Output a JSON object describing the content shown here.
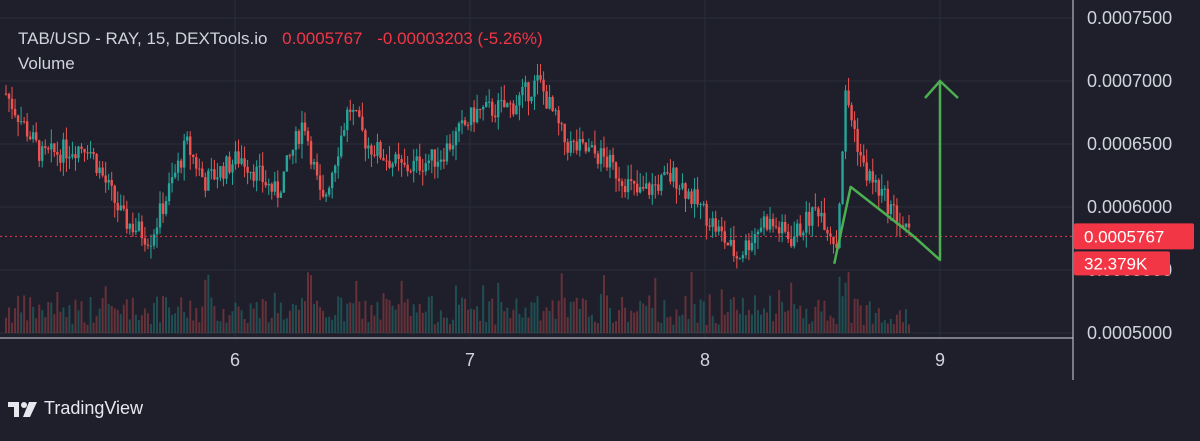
{
  "header": {
    "symbol_line": "TAB/USD - RAY, 15, DEXTools.io",
    "last_price": "0.0005767",
    "change": "-0.00003203 (-5.26%)",
    "volume_label": "Volume"
  },
  "brand": {
    "name": "TradingView"
  },
  "colors": {
    "background": "#1e1f2b",
    "up": "#26a69a",
    "down": "#ef5350",
    "last_price": "#f23645",
    "arrow": "#4caf50"
  },
  "chart_data": {
    "type": "candlestick",
    "x_ticks": [
      "6",
      "7",
      "8",
      "9"
    ],
    "y_ticks": [
      "0.0005000",
      "0.0005500",
      "0.0006000",
      "0.0006500",
      "0.0007000",
      "0.0007500"
    ],
    "ylim": [
      0.0005,
      0.00075
    ],
    "last_price_label": "0.0005767",
    "volume_label": "32.379K",
    "price_path_waypoints": [
      {
        "t": 0.0,
        "v": 0.00069
      },
      {
        "t": 0.04,
        "v": 0.00064
      },
      {
        "t": 0.09,
        "v": 0.00065
      },
      {
        "t": 0.13,
        "v": 0.00059
      },
      {
        "t": 0.16,
        "v": 0.000575
      },
      {
        "t": 0.2,
        "v": 0.00065
      },
      {
        "t": 0.22,
        "v": 0.00062
      },
      {
        "t": 0.26,
        "v": 0.00064
      },
      {
        "t": 0.3,
        "v": 0.00061
      },
      {
        "t": 0.33,
        "v": 0.00067
      },
      {
        "t": 0.35,
        "v": 0.0006
      },
      {
        "t": 0.38,
        "v": 0.00068
      },
      {
        "t": 0.4,
        "v": 0.00065
      },
      {
        "t": 0.44,
        "v": 0.00063
      },
      {
        "t": 0.48,
        "v": 0.00064
      },
      {
        "t": 0.52,
        "v": 0.000675
      },
      {
        "t": 0.56,
        "v": 0.00068
      },
      {
        "t": 0.59,
        "v": 0.0007
      },
      {
        "t": 0.62,
        "v": 0.00065
      },
      {
        "t": 0.66,
        "v": 0.00064
      },
      {
        "t": 0.7,
        "v": 0.00061
      },
      {
        "t": 0.74,
        "v": 0.000625
      },
      {
        "t": 0.78,
        "v": 0.00059
      },
      {
        "t": 0.81,
        "v": 0.00056
      },
      {
        "t": 0.84,
        "v": 0.00059
      },
      {
        "t": 0.87,
        "v": 0.000575
      },
      {
        "t": 0.9,
        "v": 0.0006
      },
      {
        "t": 0.92,
        "v": 0.00057
      },
      {
        "t": 0.93,
        "v": 0.00069
      },
      {
        "t": 0.95,
        "v": 0.00063
      },
      {
        "t": 0.97,
        "v": 0.00061
      },
      {
        "t": 1.0,
        "v": 0.000577
      }
    ],
    "annotation": {
      "type": "drawn-arrow",
      "points": [
        {
          "t_day": 8.55,
          "v": 0.000555
        },
        {
          "t_day": 8.62,
          "v": 0.000616
        },
        {
          "t_day": 8.88,
          "v": 0.000578
        },
        {
          "t_day": 9.0,
          "v": 0.000558
        },
        {
          "t_day": 9.0,
          "v": 0.0007
        }
      ]
    }
  }
}
